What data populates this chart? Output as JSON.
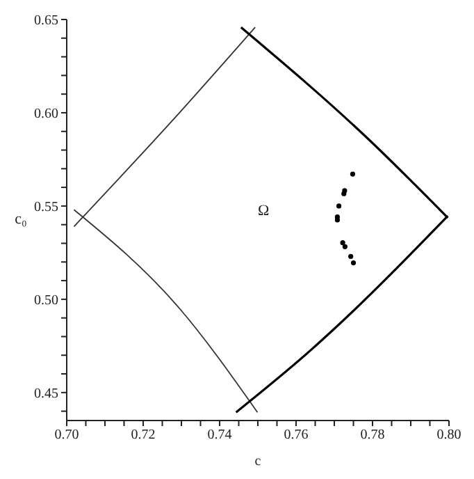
{
  "chart_data": {
    "type": "line",
    "xlabel": "c",
    "ylabel": "c₀",
    "xlim": [
      0.7,
      0.8
    ],
    "ylim": [
      0.435,
      0.65
    ],
    "xticks": [
      {
        "value": 0.7,
        "label": "0.70"
      },
      {
        "value": 0.705,
        "label": null
      },
      {
        "value": 0.71,
        "label": null
      },
      {
        "value": 0.715,
        "label": null
      },
      {
        "value": 0.72,
        "label": "0.72"
      },
      {
        "value": 0.725,
        "label": null
      },
      {
        "value": 0.73,
        "label": null
      },
      {
        "value": 0.735,
        "label": null
      },
      {
        "value": 0.74,
        "label": "0.74"
      },
      {
        "value": 0.745,
        "label": null
      },
      {
        "value": 0.75,
        "label": null
      },
      {
        "value": 0.755,
        "label": null
      },
      {
        "value": 0.76,
        "label": "0.76"
      },
      {
        "value": 0.765,
        "label": null
      },
      {
        "value": 0.77,
        "label": null
      },
      {
        "value": 0.775,
        "label": null
      },
      {
        "value": 0.78,
        "label": "0.78"
      },
      {
        "value": 0.785,
        "label": null
      },
      {
        "value": 0.79,
        "label": null
      },
      {
        "value": 0.795,
        "label": null
      },
      {
        "value": 0.8,
        "label": "0.80"
      }
    ],
    "yticks": [
      {
        "value": 0.44,
        "label": null
      },
      {
        "value": 0.45,
        "label": "0.45"
      },
      {
        "value": 0.46,
        "label": null
      },
      {
        "value": 0.47,
        "label": null
      },
      {
        "value": 0.48,
        "label": null
      },
      {
        "value": 0.49,
        "label": null
      },
      {
        "value": 0.5,
        "label": "0.50"
      },
      {
        "value": 0.51,
        "label": null
      },
      {
        "value": 0.52,
        "label": null
      },
      {
        "value": 0.53,
        "label": null
      },
      {
        "value": 0.54,
        "label": null
      },
      {
        "value": 0.55,
        "label": "0.55"
      },
      {
        "value": 0.56,
        "label": null
      },
      {
        "value": 0.57,
        "label": null
      },
      {
        "value": 0.58,
        "label": null
      },
      {
        "value": 0.59,
        "label": null
      },
      {
        "value": 0.6,
        "label": "0.60"
      },
      {
        "value": 0.61,
        "label": null
      },
      {
        "value": 0.62,
        "label": null
      },
      {
        "value": 0.63,
        "label": null
      },
      {
        "value": 0.64,
        "label": null
      },
      {
        "value": 0.65,
        "label": "0.65"
      }
    ],
    "marker": "none",
    "line_style": "solid",
    "annotations": [
      "Ω"
    ],
    "series": [
      {
        "color": "#333333",
        "x": [
          0.7019,
          0.7295,
          0.7493
        ],
        "values": [
          0.539,
          0.6,
          0.6458
        ]
      },
      {
        "color": "#333333",
        "x": [
          0.7019,
          0.7295,
          0.7499
        ],
        "values": [
          0.548,
          0.4951,
          0.4394
        ]
      },
      {
        "color": "#000000",
        "x": [
          0.7456,
          0.7789,
          0.7997
        ],
        "values": [
          0.6458,
          0.5859,
          0.5437
        ]
      },
      {
        "color": "#000000",
        "x": [
          0.7443,
          0.7641,
          0.7698,
          0.7997
        ],
        "values": [
          0.4394,
          0.4732,
          0.4838,
          0.5447
        ]
      },
      {
        "type": "scatter",
        "color": "#000000",
        "marker": "circle",
        "x": [
          0.7748,
          0.7727,
          0.7725,
          0.7712,
          0.7708,
          0.7708,
          0.7722,
          0.7728,
          0.7743,
          0.775
        ],
        "values": [
          0.5671,
          0.5582,
          0.5566,
          0.55,
          0.5441,
          0.5425,
          0.5303,
          0.5282,
          0.523,
          0.5195
        ]
      }
    ]
  }
}
